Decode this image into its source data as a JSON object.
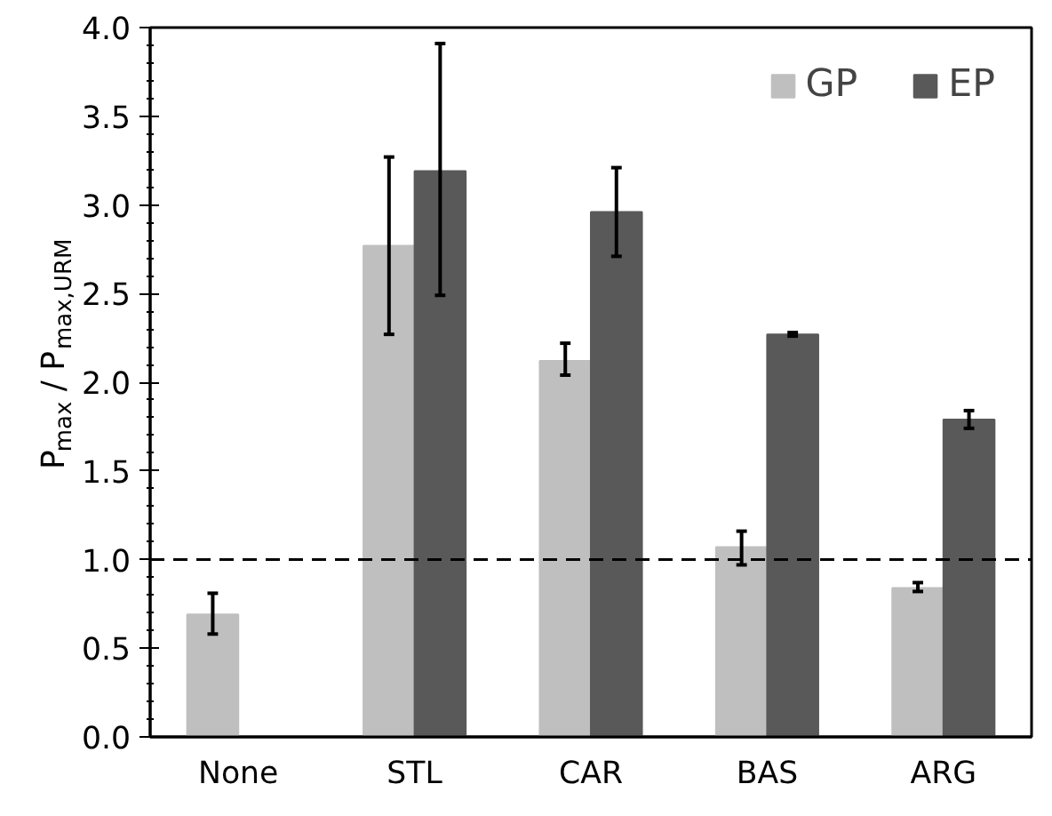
{
  "chart_data": {
    "type": "bar",
    "ylabel": "P$_{max}$ / P$_{max,URM}$",
    "categories": [
      "None",
      "STL",
      "CAR",
      "BAS",
      "ARG"
    ],
    "series": [
      {
        "name": "GP",
        "color": "#bfbfbf",
        "values": [
          0.69,
          2.77,
          2.12,
          1.07,
          0.84
        ],
        "errors": [
          [
            0.58,
            0.81
          ],
          [
            2.27,
            3.27
          ],
          [
            2.04,
            2.22
          ],
          [
            0.97,
            1.16
          ],
          [
            0.82,
            0.87
          ]
        ]
      },
      {
        "name": "EP",
        "color": "#595959",
        "values": [
          null,
          3.19,
          2.96,
          2.27,
          1.79
        ],
        "errors": [
          null,
          [
            2.49,
            3.91
          ],
          [
            2.71,
            3.21
          ],
          [
            2.26,
            2.28
          ],
          [
            1.74,
            1.84
          ]
        ]
      }
    ],
    "ylim": [
      0,
      4
    ],
    "yticks": [
      {
        "value": 0,
        "label": "0.0"
      },
      {
        "value": 0.5,
        "label": "0.5"
      },
      {
        "value": 1,
        "label": "1.0"
      },
      {
        "value": 1.5,
        "label": "1.5"
      },
      {
        "value": 2,
        "label": "2.0"
      },
      {
        "value": 2.5,
        "label": "2.5"
      },
      {
        "value": 3,
        "label": "3.0"
      },
      {
        "value": 3.5,
        "label": "3.5"
      },
      {
        "value": 4,
        "label": "4.0"
      }
    ],
    "ref_lines": [
      {
        "axis": "y",
        "value": 1,
        "line_style": "dashed",
        "color": "#000000"
      }
    ],
    "legend": "top right",
    "grid": false
  }
}
